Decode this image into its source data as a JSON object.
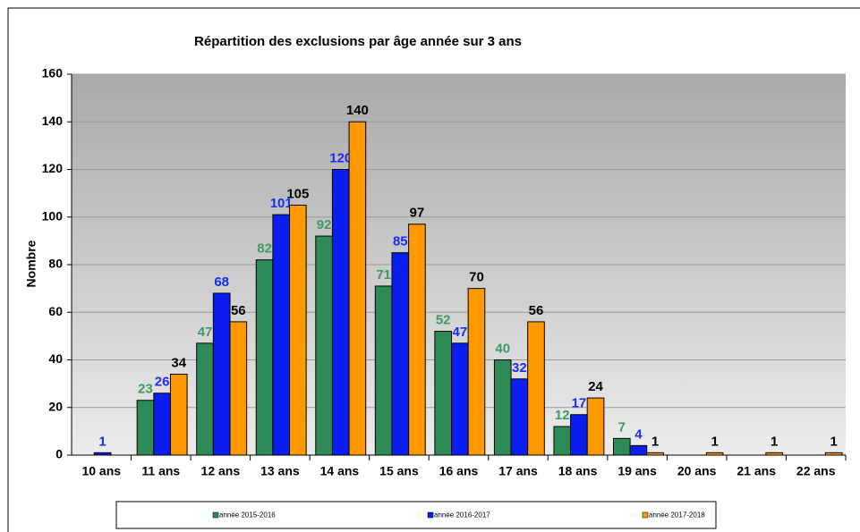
{
  "chart_data": {
    "type": "bar",
    "title": "Répartition des exclusions par âge année sur 3 ans",
    "y_label": "Nombre",
    "categories": [
      "10 ans",
      "11 ans",
      "12 ans",
      "13 ans",
      "14 ans",
      "15 ans",
      "16 ans",
      "17 ans",
      "18 ans",
      "19 ans",
      "20 ans",
      "21 ans",
      "22 ans"
    ],
    "series": [
      {
        "name": "année 2015-2016",
        "color": "#2e8b57",
        "label_color": "#3c9a62",
        "values": [
          null,
          23,
          47,
          82,
          92,
          71,
          52,
          40,
          12,
          7,
          null,
          null,
          null
        ]
      },
      {
        "name": "année 2016-2017",
        "color": "#0a1ef0",
        "label_color": "#1a2cf0",
        "values": [
          1,
          26,
          68,
          101,
          120,
          85,
          47,
          32,
          17,
          4,
          null,
          null,
          null
        ]
      },
      {
        "name": "année 2017-2018",
        "color": "#ff9900",
        "label_color": "#000000",
        "values": [
          null,
          34,
          56,
          105,
          140,
          97,
          70,
          56,
          24,
          1,
          1,
          1,
          1
        ]
      }
    ],
    "ylim": [
      0,
      160
    ],
    "yticks": [
      0,
      20,
      40,
      60,
      80,
      100,
      120,
      140,
      160
    ],
    "grid": true
  }
}
